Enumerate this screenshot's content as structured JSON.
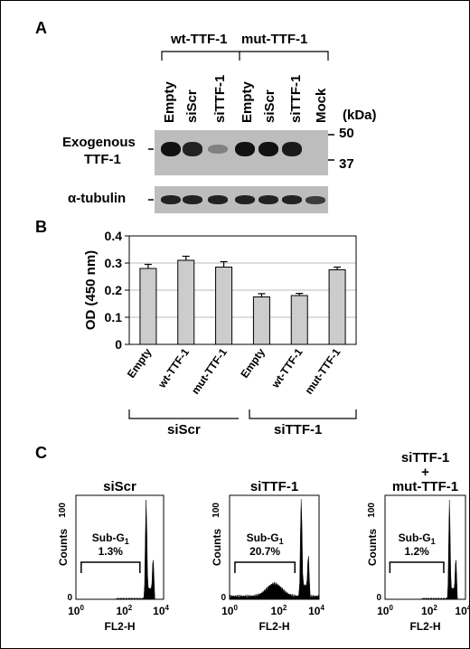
{
  "panel_a": {
    "label": "A",
    "group_wt": "wt-TTF-1",
    "group_mut": "mut-TTF-1",
    "lanes": [
      "Empty",
      "siScr",
      "siTTF-1",
      "Empty",
      "siScr",
      "siTTF-1",
      "Mock"
    ],
    "kda_label": "(kDa)",
    "marker_50": "50",
    "marker_37": "37",
    "exo_label_1": "Exogenous",
    "exo_label_2": "TTF-1",
    "tubulin_label": "α-tubulin",
    "exo_intensity": [
      1.0,
      0.9,
      0.15,
      1.0,
      1.0,
      0.95,
      0.0
    ],
    "tub_intensity": [
      0.9,
      0.9,
      0.9,
      0.9,
      0.9,
      0.9,
      0.75
    ]
  },
  "panel_b": {
    "label": "B",
    "group_siscr": "siScr",
    "group_sittf": "siTTF-1"
  },
  "chart_data": {
    "type": "bar",
    "categories": [
      "Empty",
      "wt-TTF-1",
      "mut-TTF-1",
      "Empty",
      "wt-TTF-1",
      "mut-TTF-1"
    ],
    "values": [
      0.28,
      0.31,
      0.285,
      0.175,
      0.18,
      0.275
    ],
    "errors": [
      0.015,
      0.015,
      0.02,
      0.012,
      0.008,
      0.01
    ],
    "ylabel": "OD (450 nm)",
    "ylim": [
      0,
      0.4
    ],
    "yticks": [
      "0",
      "0.1",
      "0.2",
      "0.3",
      "0.4"
    ],
    "grid": true,
    "bar_color": "#cccccc"
  },
  "panel_c": {
    "label": "C",
    "ylabel": "Counts",
    "xlabel": "FL2-H",
    "y_max_tick": "100",
    "y_min_tick": "0",
    "xticks": [
      {
        "base": "10",
        "exp": "0"
      },
      {
        "base": "10",
        "exp": "2"
      },
      {
        "base": "10",
        "exp": "4"
      }
    ],
    "gate_label": "Sub-G",
    "gate_sub": "1",
    "histograms": [
      {
        "title_lines": [
          "siScr"
        ],
        "subg_pct": "1.3%"
      },
      {
        "title_lines": [
          "siTTF-1"
        ],
        "subg_pct": "20.7%"
      },
      {
        "title_lines": [
          "siTTF-1",
          "+",
          "mut-TTF-1"
        ],
        "subg_pct": "1.2%"
      }
    ]
  }
}
